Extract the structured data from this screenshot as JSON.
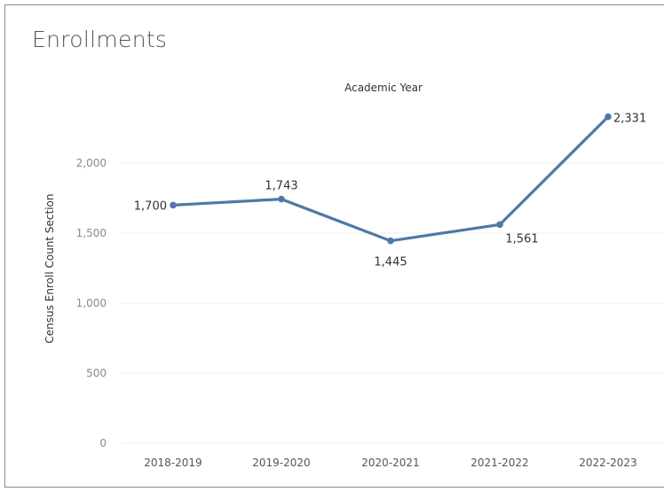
{
  "card": {
    "title": "Enrollments"
  },
  "chart_data": {
    "type": "line",
    "x_header": "Academic Year",
    "ylabel": "Census Enroll Count Section",
    "categories": [
      "2018-2019",
      "2019-2020",
      "2020-2021",
      "2021-2022",
      "2022-2023"
    ],
    "values": [
      1700,
      1743,
      1445,
      1561,
      2331
    ],
    "value_labels": [
      "1,700",
      "1,743",
      "1,445",
      "1,561",
      "2,331"
    ],
    "yticks": [
      0,
      500,
      1000,
      1500,
      2000
    ],
    "ytick_labels": [
      "0",
      "500",
      "1,000",
      "1,500",
      "2,000"
    ],
    "ylim": [
      0,
      2400
    ],
    "grid": "horizontal",
    "line_color": "#4e79a7"
  }
}
